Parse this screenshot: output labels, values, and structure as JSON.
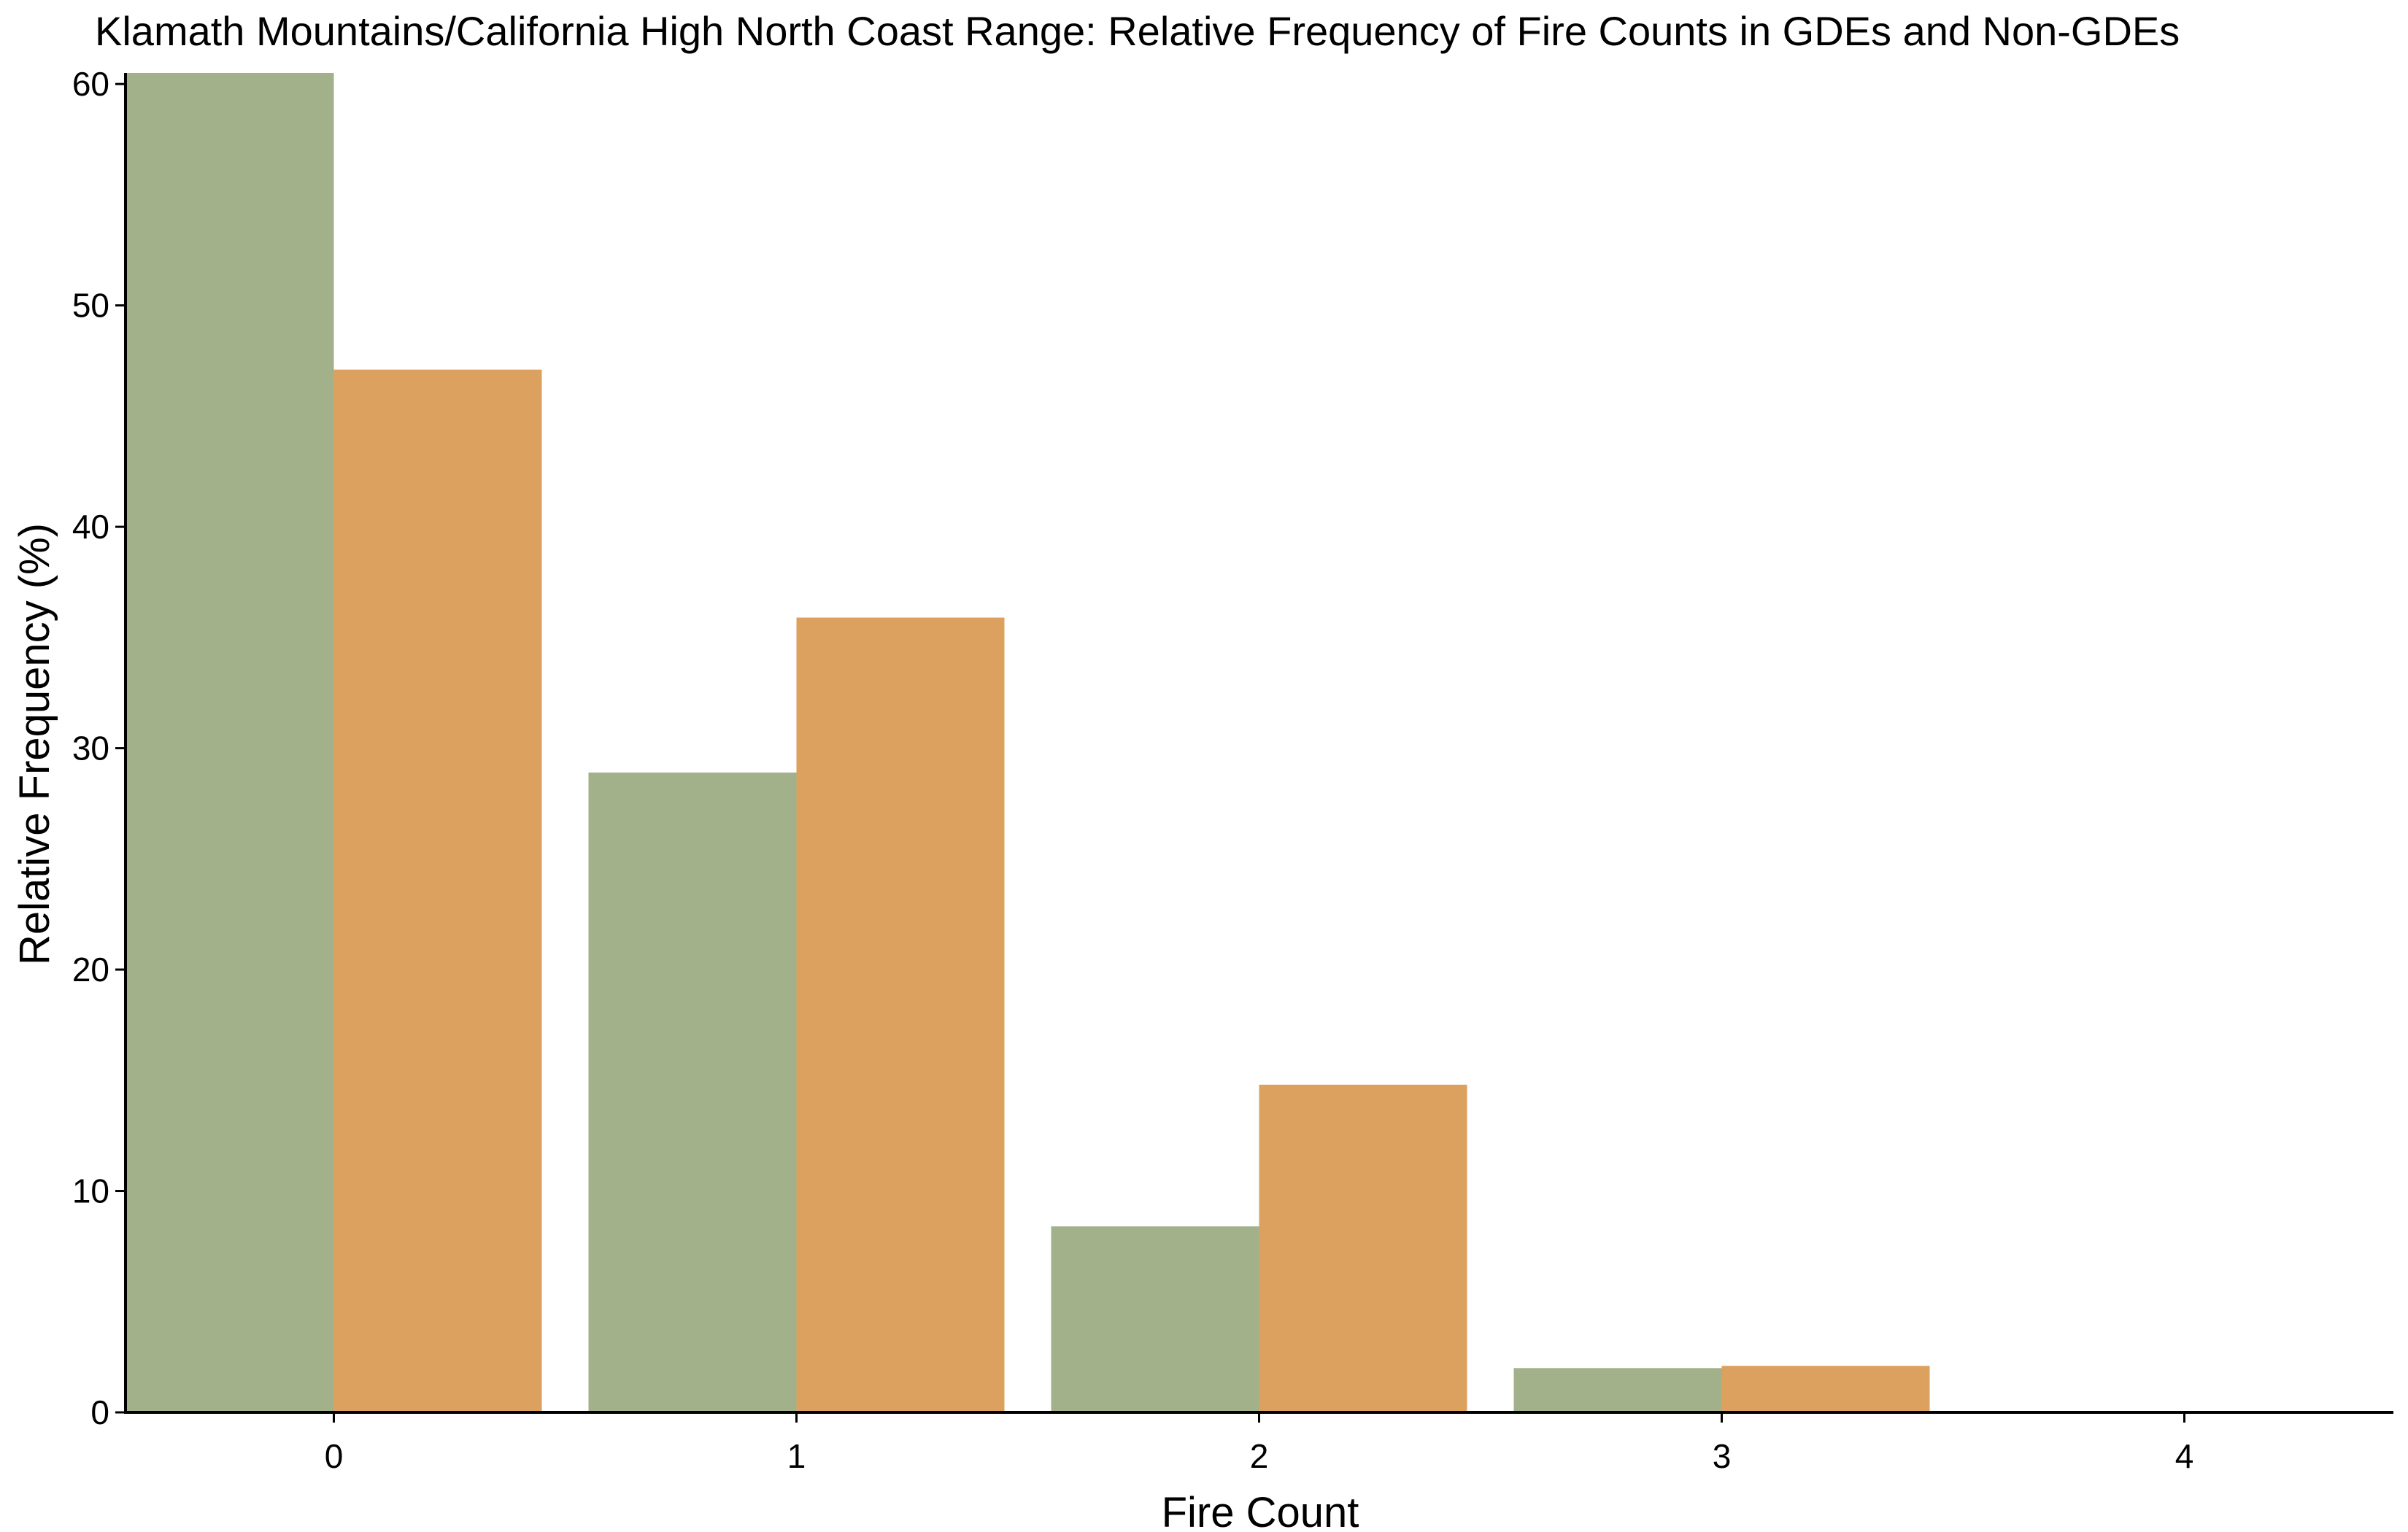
{
  "chart_data": {
    "type": "bar",
    "title": "Klamath Mountains/California High North Coast Range: Relative Frequency of Fire Counts in GDEs and Non-GDEs",
    "xlabel": "Fire Count",
    "ylabel": "Relative Frequency (%)",
    "categories": [
      "0",
      "1",
      "2",
      "3",
      "4"
    ],
    "ylim": [
      0,
      60.5
    ],
    "yticks": [
      0,
      10,
      20,
      30,
      40,
      50,
      60
    ],
    "grid": false,
    "legend": "none",
    "series": [
      {
        "values": [
          60.5,
          28.9,
          8.4,
          2.0,
          0.0
        ],
        "color": "#a2b18a"
      },
      {
        "values": [
          47.1,
          35.9,
          14.8,
          2.1,
          0.05
        ],
        "color": "#dca15e"
      }
    ]
  }
}
